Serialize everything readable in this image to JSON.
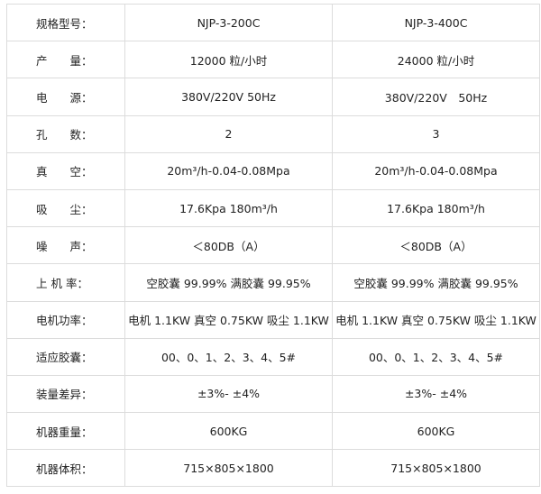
{
  "rows": [
    {
      "label": "规格型号：",
      "a": "NJP-3-200C",
      "b": "NJP-3-400C"
    },
    {
      "label": "产　　量：",
      "a": "12000 粒/小时",
      "b": "24000 粒/小时"
    },
    {
      "label": "电　　源：",
      "a": "380V/220V 50Hz",
      "b": "380V/220V　50Hz"
    },
    {
      "label": "孔　　数：",
      "a": "2",
      "b": "3"
    },
    {
      "label": "真　　空：",
      "a": "20m³/h-0.04-0.08Mpa",
      "b": "20m³/h-0.04-0.08Mpa"
    },
    {
      "label": "吸　　尘：",
      "a": "17.6Kpa 180m³/h",
      "b": "17.6Kpa 180m³/h"
    },
    {
      "label": "噪　　声：",
      "a": "＜80DB（A）",
      "b": "＜80DB（A）"
    },
    {
      "label": "上 机 率：",
      "a": "空胶囊 99.99% 满胶囊 99.95%",
      "b": "空胶囊 99.99% 满胶囊 99.95%"
    },
    {
      "label": "电机功率：",
      "a": "电机 1.1KW 真空 0.75KW 吸尘 1.1KW",
      "b": "电机 1.1KW 真空 0.75KW 吸尘 1.1KW"
    },
    {
      "label": "适应胶囊：",
      "a": "00、0、1、2、3、4、5#",
      "b": "00、0、1、2、3、4、5#"
    },
    {
      "label": "装量差异：",
      "a": "±3%- ±4%",
      "b": "±3%- ±4%"
    },
    {
      "label": "机器重量：",
      "a": "600KG",
      "b": "600KG"
    },
    {
      "label": "机器体积：",
      "a": "715×805×1800",
      "b": "715×805×1800"
    }
  ]
}
